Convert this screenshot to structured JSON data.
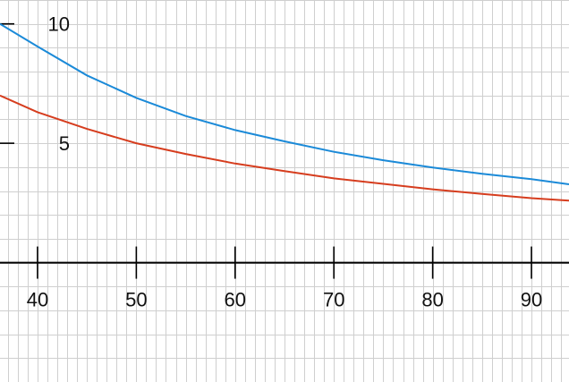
{
  "chart_data": {
    "type": "line",
    "x_ticks": [
      40,
      50,
      60,
      70,
      80,
      90
    ],
    "y_ticks": [
      10,
      5
    ],
    "xlim": [
      36.2,
      93.8
    ],
    "ylim": [
      -5,
      11
    ],
    "grid": true,
    "minor_grid_step": 1,
    "x": [
      36.2,
      40,
      45,
      50,
      55,
      60,
      65,
      70,
      75,
      80,
      85,
      90,
      93.8
    ],
    "series": [
      {
        "color": "#1b8ad8",
        "values": [
          10,
          9.05,
          7.84,
          6.9,
          6.14,
          5.55,
          5.08,
          4.64,
          4.29,
          3.98,
          3.72,
          3.5,
          3.28
        ]
      },
      {
        "color": "#d63d1e",
        "values": [
          7,
          6.3,
          5.6,
          5.0,
          4.55,
          4.15,
          3.83,
          3.53,
          3.3,
          3.07,
          2.88,
          2.7,
          2.6
        ]
      }
    ]
  }
}
